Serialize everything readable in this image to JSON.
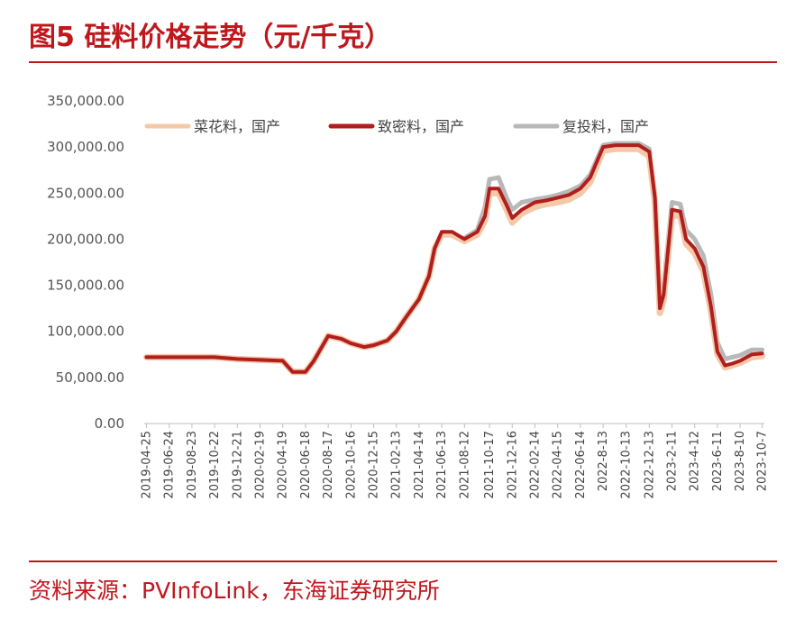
{
  "header": {
    "title": "图5  硅料价格走势（元/千克）"
  },
  "footer": {
    "source": "资料来源：PVInfoLink，东海证券研究所"
  },
  "colors": {
    "accent": "#c0171d",
    "series": [
      "#f5c8a8",
      "#b01e1e",
      "#b8b8b8"
    ]
  },
  "chart_data": {
    "type": "line",
    "title": "",
    "xlabel": "",
    "ylabel": "",
    "ylim": [
      0,
      350000
    ],
    "legend_position": "top",
    "grid": false,
    "y_ticks": [
      "350,000.00",
      "300,000.00",
      "250,000.00",
      "200,000.00",
      "150,000.00",
      "100,000.00",
      "50,000.00",
      "0.00"
    ],
    "x_tick_labels": [
      "2019-04-25",
      "2019-06-24",
      "2019-08-23",
      "2019-10-22",
      "2019-12-21",
      "2020-02-19",
      "2020-04-19",
      "2020-06-18",
      "2020-08-17",
      "2020-10-16",
      "2020-12-15",
      "2021-02-13",
      "2021-04-14",
      "2021-06-13",
      "2021-08-12",
      "2021-10-17",
      "2021-12-16",
      "2022-02-14",
      "2022-04-15",
      "2022-06-14",
      "2022-8-13",
      "2022-10-13",
      "2022-12-13",
      "2023-2-11",
      "2023-4-12",
      "2023-6-11",
      "2023-8-10",
      "2023-10-7"
    ],
    "x": [
      "2019-04-25",
      "2019-06-24",
      "2019-08-23",
      "2019-10-22",
      "2019-12-21",
      "2020-02-19",
      "2020-04-19",
      "2020-05-15",
      "2020-06-18",
      "2020-07-10",
      "2020-08-17",
      "2020-09-20",
      "2020-10-16",
      "2020-11-20",
      "2020-12-15",
      "2021-01-20",
      "2021-02-13",
      "2021-03-10",
      "2021-04-14",
      "2021-05-10",
      "2021-05-25",
      "2021-06-13",
      "2021-07-10",
      "2021-08-12",
      "2021-09-15",
      "2021-10-05",
      "2021-10-17",
      "2021-11-10",
      "2021-12-01",
      "2021-12-16",
      "2022-01-10",
      "2022-02-14",
      "2022-03-15",
      "2022-04-15",
      "2022-05-15",
      "2022-06-14",
      "2022-07-10",
      "2022-8-13",
      "2022-9-15",
      "2022-10-13",
      "2022-11-15",
      "2022-12-13",
      "2022-12-28",
      "2023-01-10",
      "2023-01-20",
      "2023-2-11",
      "2023-03-05",
      "2023-03-20",
      "2023-4-12",
      "2023-05-05",
      "2023-05-25",
      "2023-6-11",
      "2023-07-01",
      "2023-07-20",
      "2023-8-10",
      "2023-09-10",
      "2023-10-7"
    ],
    "series": [
      {
        "name": "菜花料，国产",
        "values": [
          72000,
          72000,
          72000,
          72000,
          70000,
          69000,
          68000,
          56000,
          56000,
          68000,
          95000,
          92000,
          87000,
          83000,
          85000,
          90000,
          100000,
          115000,
          135000,
          160000,
          190000,
          205000,
          205000,
          198000,
          205000,
          220000,
          250000,
          250000,
          232000,
          218000,
          228000,
          235000,
          238000,
          240000,
          243000,
          250000,
          262000,
          296000,
          298000,
          298000,
          298000,
          290000,
          240000,
          120000,
          135000,
          226000,
          225000,
          195000,
          185000,
          165000,
          122000,
          75000,
          61000,
          63000,
          66000,
          72000,
          73000
        ]
      },
      {
        "name": "致密料，国产",
        "values": [
          72000,
          72000,
          72000,
          72000,
          70000,
          69000,
          68000,
          56000,
          56000,
          68000,
          95000,
          92000,
          87000,
          83000,
          85000,
          90000,
          100000,
          115000,
          135000,
          160000,
          190000,
          208000,
          208000,
          200000,
          208000,
          225000,
          255000,
          255000,
          237000,
          223000,
          232000,
          240000,
          242000,
          245000,
          248000,
          255000,
          267000,
          300000,
          302000,
          302000,
          302000,
          295000,
          245000,
          125000,
          140000,
          232000,
          230000,
          200000,
          190000,
          170000,
          127000,
          78000,
          63000,
          65000,
          68000,
          75000,
          76000
        ]
      },
      {
        "name": "复投料，国产",
        "values": [
          null,
          null,
          null,
          null,
          null,
          null,
          null,
          null,
          null,
          null,
          null,
          null,
          null,
          null,
          null,
          null,
          null,
          null,
          null,
          null,
          null,
          null,
          null,
          201000,
          210000,
          235000,
          265000,
          267000,
          245000,
          232000,
          240000,
          243000,
          245000,
          248000,
          252000,
          258000,
          270000,
          302000,
          304000,
          304000,
          304000,
          298000,
          250000,
          130000,
          150000,
          240000,
          238000,
          210000,
          200000,
          182000,
          140000,
          88000,
          70000,
          72000,
          74000,
          80000,
          80000
        ]
      }
    ]
  }
}
